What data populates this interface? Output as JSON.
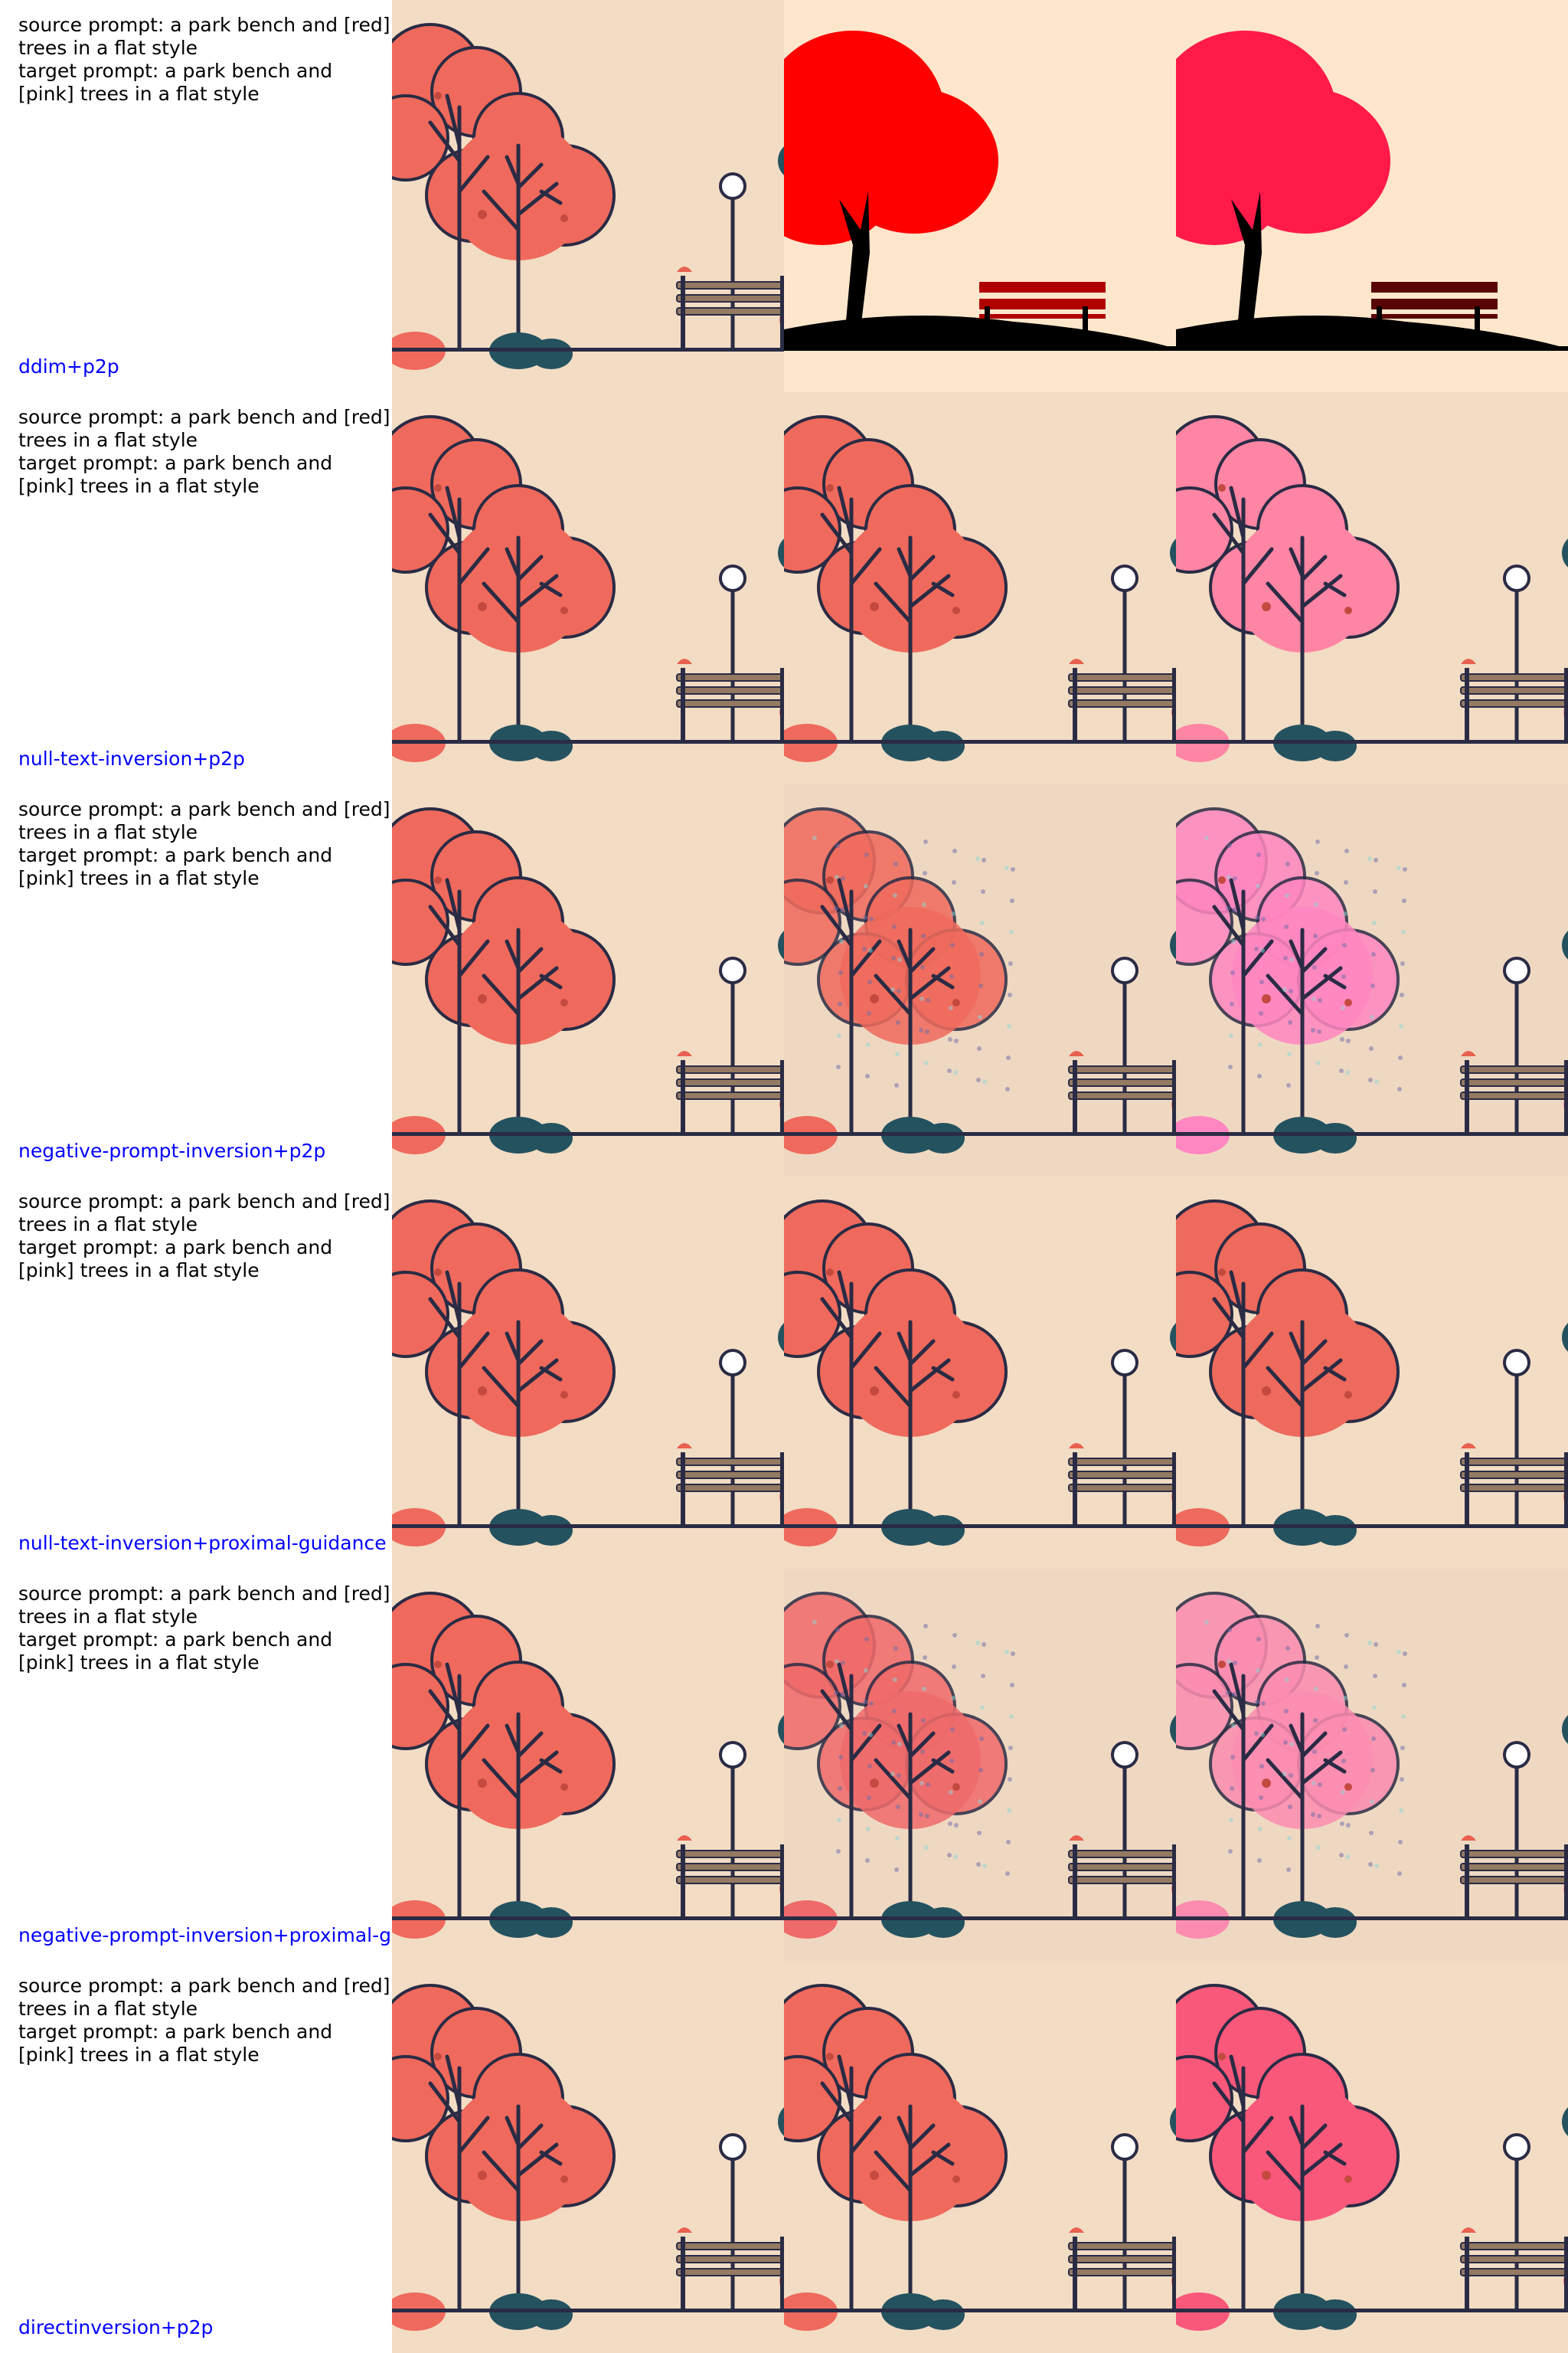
{
  "rows": [
    {
      "prompt": "source prompt: a park bench and [red]\ntrees in a flat style\ntarget prompt: a park bench and\n[pink] trees in a flat style",
      "method": "ddim+p2p",
      "panels": [
        {
          "variant": "flat",
          "tree": "#ef6a5c"
        },
        {
          "variant": "silhouette",
          "tree": "#ff0000",
          "bench": "#b00000"
        },
        {
          "variant": "silhouette",
          "tree": "#ff1a4a",
          "bench": "#5a0505"
        }
      ]
    },
    {
      "prompt": "source prompt: a park bench and [red]\ntrees in a flat style\ntarget prompt: a park bench and\n[pink] trees in a flat style",
      "method": "null-text-inversion+p2p",
      "panels": [
        {
          "variant": "flat",
          "tree": "#ef6a5c"
        },
        {
          "variant": "flat",
          "tree": "#ef6a5c"
        },
        {
          "variant": "flat",
          "tree": "#ff85a4"
        }
      ]
    },
    {
      "prompt": "source prompt: a park bench and [red]\ntrees in a flat style\ntarget prompt: a park bench and\n[pink] trees in a flat style",
      "method": "negative-prompt-inversion+p2p",
      "panels": [
        {
          "variant": "flat",
          "tree": "#ef6a5c"
        },
        {
          "variant": "noisy",
          "tree": "#ef6a5c"
        },
        {
          "variant": "noisy",
          "tree": "#ff86c0"
        }
      ]
    },
    {
      "prompt": "source prompt: a park bench and [red]\ntrees in a flat style\ntarget prompt: a park bench and\n[pink] trees in a flat style",
      "method": "null-text-inversion+proximal-guidance",
      "panels": [
        {
          "variant": "flat",
          "tree": "#ef6a5c"
        },
        {
          "variant": "flat",
          "tree": "#ef6a5c"
        },
        {
          "variant": "flat",
          "tree": "#ed6a5c"
        }
      ]
    },
    {
      "prompt": "source prompt: a park bench and [red]\ntrees in a flat style\ntarget prompt: a park bench and\n[pink] trees in a flat style",
      "method": "negative-prompt-inversion+proximal-guidance",
      "panels": [
        {
          "variant": "flat",
          "tree": "#ef6a5c"
        },
        {
          "variant": "noisy",
          "tree": "#ef6a6a"
        },
        {
          "variant": "noisy",
          "tree": "#fb8cb0"
        }
      ]
    },
    {
      "prompt": "source prompt: a park bench and [red]\ntrees in a flat style\ntarget prompt: a park bench and\n[pink] trees in a flat style",
      "method": "directinversion+p2p",
      "panels": [
        {
          "variant": "flat",
          "tree": "#ef6a5c"
        },
        {
          "variant": "flat",
          "tree": "#ef6a5c"
        },
        {
          "variant": "flat",
          "tree": "#f9587a"
        }
      ]
    }
  ],
  "colors": {
    "background": "#f2dcc4",
    "outline": "#2a2b44",
    "bush_dark": "#24525f",
    "bench": "#947a62",
    "lamp_globe": "#ffffff"
  }
}
